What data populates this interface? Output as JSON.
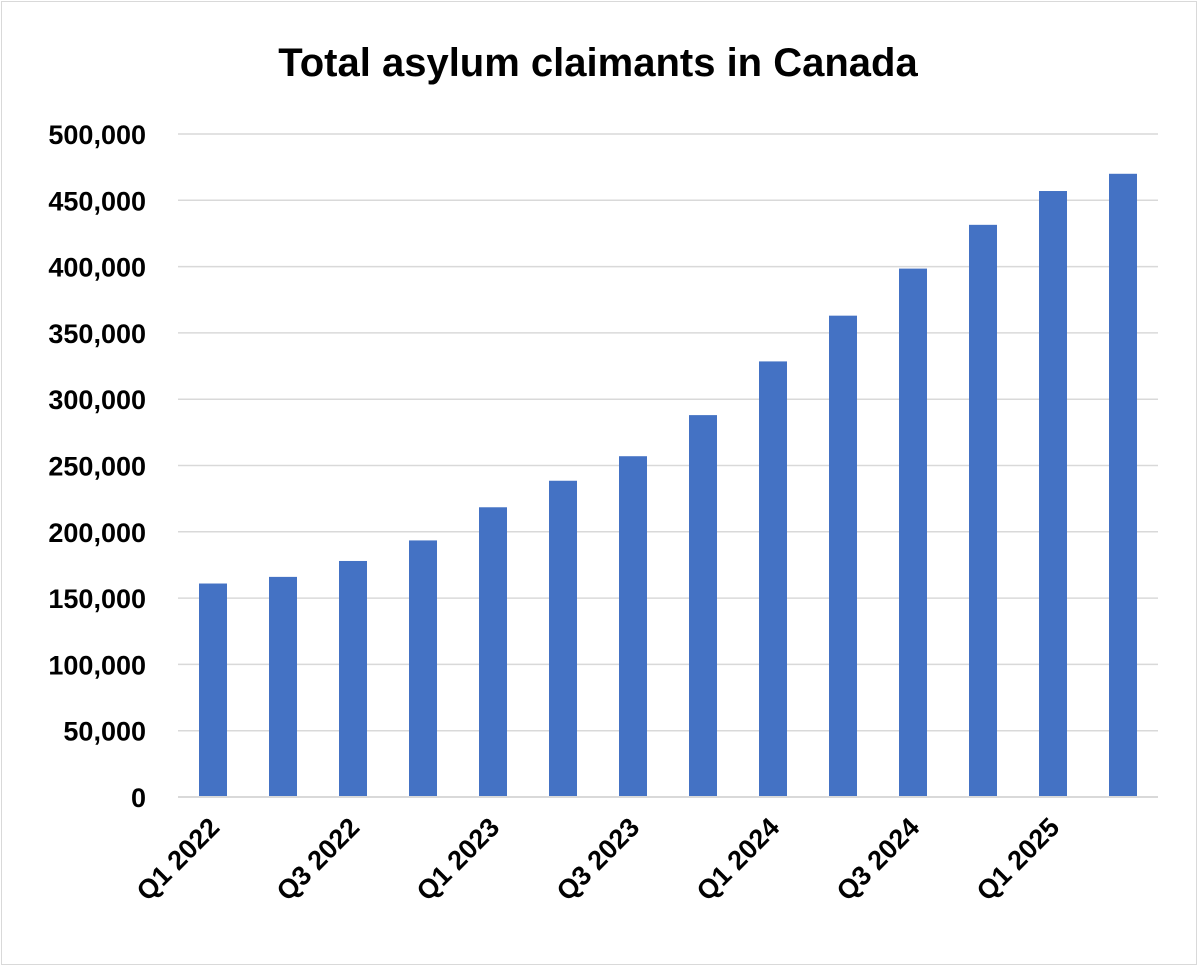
{
  "chart_data": {
    "type": "bar",
    "title": "Total asylum claimants in Canada",
    "xlabel": "",
    "ylabel": "",
    "ylim": [
      0,
      500000
    ],
    "y_ticks": [
      0,
      50000,
      100000,
      150000,
      200000,
      250000,
      300000,
      350000,
      400000,
      450000,
      500000
    ],
    "y_tick_labels": [
      "0",
      "50,000",
      "100,000",
      "150,000",
      "200,000",
      "250,000",
      "300,000",
      "350,000",
      "400,000",
      "450,000",
      "500,000"
    ],
    "categories": [
      "Q1 2022",
      "Q2 2022",
      "Q3 2022",
      "Q4 2022",
      "Q1 2023",
      "Q2 2023",
      "Q3 2023",
      "Q4 2023",
      "Q1 2024",
      "Q2 2024",
      "Q3 2024",
      "Q4 2024",
      "Q1 2025",
      "Q2 2025"
    ],
    "x_tick_labels": [
      "Q1 2022",
      "Q3 2022",
      "Q1 2023",
      "Q3 2023",
      "Q1 2024",
      "Q3 2024",
      "Q1 2025"
    ],
    "series": [
      {
        "name": "Total asylum claimants",
        "values": [
          161000,
          166000,
          178000,
          193500,
          218500,
          238500,
          257000,
          288000,
          328500,
          363000,
          398500,
          431500,
          457000,
          470000
        ]
      }
    ],
    "grid": true,
    "legend": "none",
    "colors": {
      "bar": "#4472C4",
      "grid": "#D9D9D9",
      "text": "#000000"
    }
  }
}
